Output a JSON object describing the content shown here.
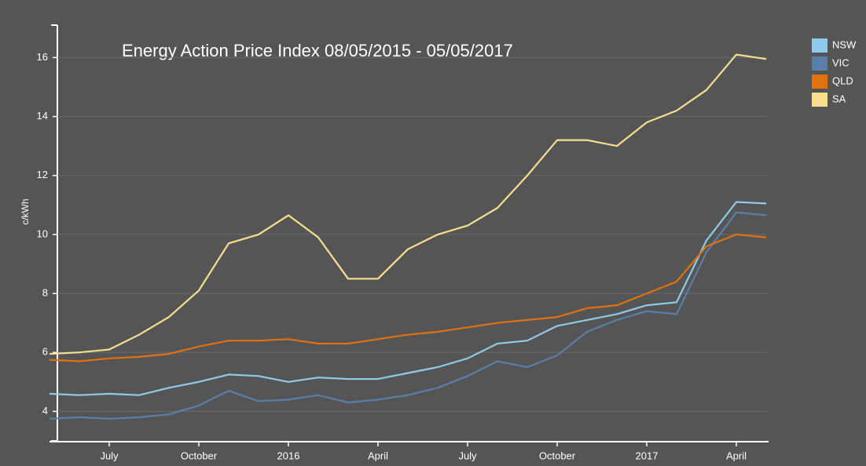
{
  "chart_data": {
    "type": "line",
    "title": "Energy Action Price Index 08/05/2015 - 05/05/2017",
    "y_label": "c/kWh",
    "x": [
      "2015-05",
      "2015-06",
      "2015-07",
      "2015-08",
      "2015-09",
      "2015-10",
      "2015-11",
      "2015-12",
      "2016-01",
      "2016-02",
      "2016-03",
      "2016-04",
      "2016-05",
      "2016-06",
      "2016-07",
      "2016-08",
      "2016-09",
      "2016-10",
      "2016-11",
      "2016-12",
      "2017-01",
      "2017-02",
      "2017-03",
      "2017-04",
      "2017-05"
    ],
    "series": [
      {
        "name": "NSW",
        "color": "#8ecbeb",
        "values": [
          4.6,
          4.55,
          4.6,
          4.55,
          4.8,
          5.0,
          5.25,
          5.2,
          5.0,
          5.15,
          5.1,
          5.1,
          5.3,
          5.5,
          5.8,
          6.3,
          6.4,
          6.9,
          7.1,
          7.3,
          7.6,
          7.7,
          9.8,
          11.1,
          11.05
        ]
      },
      {
        "name": "VIC",
        "color": "#5b7fa9",
        "values": [
          3.75,
          3.8,
          3.75,
          3.8,
          3.9,
          4.2,
          4.7,
          4.35,
          4.4,
          4.55,
          4.3,
          4.4,
          4.55,
          4.8,
          5.2,
          5.7,
          5.5,
          5.9,
          6.7,
          7.1,
          7.4,
          7.3,
          9.4,
          10.75,
          10.65
        ]
      },
      {
        "name": "QLD",
        "color": "#e0720f",
        "values": [
          5.75,
          5.7,
          5.8,
          5.85,
          5.95,
          6.2,
          6.4,
          6.4,
          6.45,
          6.3,
          6.3,
          6.45,
          6.6,
          6.7,
          6.85,
          7.0,
          7.1,
          7.2,
          7.5,
          7.6,
          8.0,
          8.4,
          9.6,
          10.0,
          9.9
        ]
      },
      {
        "name": "SA",
        "color": "#f7df8f",
        "values": [
          5.95,
          6.0,
          6.1,
          6.6,
          7.2,
          8.1,
          9.7,
          10.0,
          10.65,
          9.9,
          8.5,
          8.5,
          9.5,
          10.0,
          10.3,
          10.9,
          12.0,
          13.2,
          13.2,
          13.0,
          13.8,
          14.2,
          14.9,
          16.1,
          15.95
        ]
      }
    ],
    "xlim": [
      "2015-05",
      "2017-05"
    ],
    "xticks": [
      {
        "value": "2015-07",
        "label": "July"
      },
      {
        "value": "2015-10",
        "label": "October"
      },
      {
        "value": "2016-01",
        "label": "2016"
      },
      {
        "value": "2016-04",
        "label": "April"
      },
      {
        "value": "2016-07",
        "label": "July"
      },
      {
        "value": "2016-10",
        "label": "October"
      },
      {
        "value": "2017-01",
        "label": "2017"
      },
      {
        "value": "2017-04",
        "label": "April"
      }
    ],
    "ylim": [
      3,
      17.1
    ],
    "yticks": [
      4,
      6,
      8,
      10,
      12,
      14,
      16
    ],
    "grid": true,
    "legend": "top-right"
  }
}
